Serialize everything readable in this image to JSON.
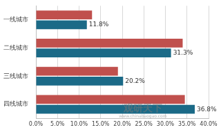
{
  "chart_data": {
    "type": "bar",
    "orientation": "horizontal",
    "grid": true,
    "categories": [
      "一线城市",
      "二线城市",
      "三线城市",
      "四线城市"
    ],
    "series": [
      {
        "color": "#c0504d",
        "values": [
          13.0,
          34.0,
          19.0,
          34.5
        ]
      },
      {
        "color": "#1b6a87",
        "values": [
          11.8,
          31.3,
          20.2,
          36.8
        ],
        "data_labels": true,
        "value_labels": [
          "11.8%",
          "31.3%",
          "20.2%",
          "36.8%"
        ]
      }
    ],
    "xlim": [
      0,
      40
    ],
    "xticks": [
      {
        "value": 0,
        "label": "0.0%"
      },
      {
        "value": 5,
        "label": "5.0%"
      },
      {
        "value": 10,
        "label": "10.0%"
      },
      {
        "value": 15,
        "label": "15.0%"
      },
      {
        "value": 20,
        "label": "20.0%"
      },
      {
        "value": 25,
        "label": "25.0%"
      },
      {
        "value": 30,
        "label": "30.0%"
      },
      {
        "value": 35,
        "label": "35.0%"
      },
      {
        "value": 40,
        "label": "40.0%"
      }
    ],
    "annotations": [
      "观研天下",
      "www.chinabaogao.com"
    ]
  }
}
